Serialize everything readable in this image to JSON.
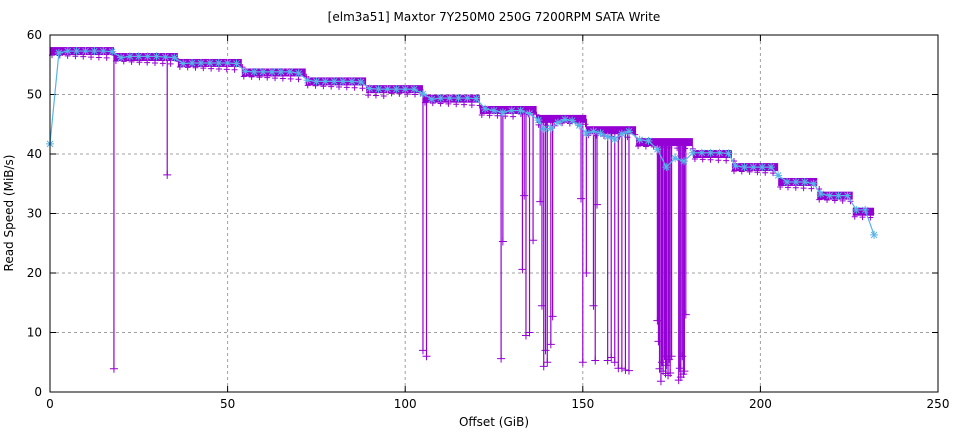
{
  "chart_data": {
    "type": "line",
    "title": "[elm3a51] Maxtor 7Y250M0 250G 7200RPM SATA Write",
    "xlabel": "Offset (GiB)",
    "ylabel": "Read Speed (MiB/s)",
    "xlim": [
      0,
      250
    ],
    "ylim": [
      0,
      60
    ],
    "xticks": [
      "0",
      "50",
      "100",
      "150",
      "200",
      "250"
    ],
    "yticks": [
      "0",
      "10",
      "20",
      "30",
      "40",
      "50",
      "60"
    ],
    "grid": true,
    "colors": {
      "samples": "#9400d3",
      "average": "#56b4e9"
    },
    "zones": [
      [
        0,
        18,
        57.3
      ],
      [
        18,
        36,
        56.3
      ],
      [
        36,
        54,
        55.3
      ],
      [
        54,
        72,
        53.7
      ],
      [
        72,
        89,
        52.2
      ],
      [
        89,
        105,
        50.9
      ],
      [
        105,
        121,
        49.3
      ],
      [
        121,
        137,
        47.4
      ],
      [
        137,
        151,
        45.9
      ],
      [
        151,
        165,
        44.0
      ],
      [
        165,
        181,
        42.0
      ],
      [
        181,
        192,
        40.0
      ],
      [
        192,
        205,
        37.8
      ],
      [
        205,
        216,
        35.3
      ],
      [
        216,
        226,
        33.0
      ],
      [
        226,
        232,
        30.3
      ]
    ],
    "dips": [
      [
        18,
        3.9
      ],
      [
        33,
        36.5
      ],
      [
        105,
        7.0
      ],
      [
        106,
        6.0
      ],
      [
        127,
        5.6
      ],
      [
        127.5,
        25.3
      ],
      [
        133,
        20.6
      ],
      [
        133.5,
        33
      ],
      [
        134,
        9.5
      ],
      [
        135,
        10
      ],
      [
        136,
        25.5
      ],
      [
        138,
        32
      ],
      [
        138.5,
        14.5
      ],
      [
        139,
        4.3
      ],
      [
        139.5,
        7
      ],
      [
        140,
        5
      ],
      [
        141,
        8
      ],
      [
        141.5,
        12.7
      ],
      [
        149.5,
        32.5
      ],
      [
        150,
        5
      ],
      [
        151,
        20
      ],
      [
        153,
        14.5
      ],
      [
        153.5,
        5.3
      ],
      [
        154,
        31.5
      ],
      [
        157,
        5.3
      ],
      [
        158,
        5.8
      ],
      [
        159,
        5
      ],
      [
        160,
        4
      ],
      [
        161,
        4
      ],
      [
        162,
        3.7
      ],
      [
        163,
        3.6
      ],
      [
        171,
        12
      ],
      [
        171.3,
        8.5
      ],
      [
        171.6,
        3.9
      ],
      [
        172,
        1.8
      ],
      [
        172.3,
        5
      ],
      [
        172.6,
        3.5
      ],
      [
        173,
        6
      ],
      [
        173.3,
        3.1
      ],
      [
        173.6,
        4.5
      ],
      [
        174,
        2.8
      ],
      [
        174.3,
        5.5
      ],
      [
        174.6,
        3.2
      ],
      [
        175,
        6
      ],
      [
        177,
        2
      ],
      [
        177.3,
        4
      ],
      [
        177.6,
        2.5
      ],
      [
        178,
        6
      ],
      [
        178.3,
        3
      ],
      [
        178.6,
        3.5
      ],
      [
        179,
        13
      ]
    ],
    "series": [
      {
        "x": [
          0,
          2.5,
          5,
          7.5,
          10,
          12.5,
          15,
          17.5,
          20,
          22.5,
          25,
          27.5,
          30,
          32.5,
          35,
          37.5,
          40,
          42.5,
          45,
          47.5,
          50,
          52.5,
          55,
          57.5,
          60,
          62.5,
          65,
          67.5,
          70,
          72.5,
          75,
          77.5,
          80,
          82.5,
          85,
          87.5,
          90,
          92.5,
          95,
          97.5,
          100,
          102.5,
          105,
          107.5,
          110,
          112.5,
          115,
          117.5,
          120,
          122.5,
          125,
          127.5,
          130,
          132.5,
          135,
          137.5,
          139,
          141,
          143,
          145,
          147,
          149,
          151,
          153,
          155,
          157,
          159,
          161,
          163,
          166,
          168.5,
          171,
          173.5,
          176,
          178.5,
          181,
          183.5,
          186,
          188.5,
          191,
          193,
          195.5,
          198,
          200.5,
          203,
          205,
          207.5,
          210,
          212.5,
          215,
          217,
          219.5,
          222,
          224.5,
          227,
          229.5,
          232
        ],
        "y": [
          41.7,
          57.0,
          57.3,
          57.3,
          57.3,
          57.3,
          57.3,
          57.2,
          56.2,
          56.4,
          56.4,
          56.4,
          56.4,
          56.3,
          56.2,
          55.2,
          55.3,
          55.3,
          55.3,
          55.3,
          55.3,
          55.2,
          53.9,
          53.8,
          53.8,
          53.8,
          53.8,
          53.8,
          53.6,
          52.4,
          52.2,
          52.2,
          52.2,
          52.2,
          52.2,
          52.1,
          51.0,
          50.9,
          50.9,
          50.9,
          50.9,
          50.9,
          50.1,
          49.2,
          49.4,
          49.4,
          49.4,
          49.4,
          49.3,
          47.6,
          47.3,
          47.0,
          47.3,
          47.3,
          46.8,
          45.7,
          44.2,
          44.3,
          45.3,
          45.8,
          45.6,
          44.8,
          43.5,
          43.8,
          43.5,
          42.9,
          42.5,
          43.4,
          43.8,
          42.4,
          42.2,
          40.8,
          37.8,
          39.3,
          38.8,
          40.2,
          40.2,
          40.2,
          40.2,
          40.1,
          38.0,
          37.8,
          37.8,
          37.8,
          37.8,
          36.4,
          35.3,
          35.3,
          35.3,
          35.0,
          33.3,
          33.0,
          33.0,
          33.0,
          30.6,
          30.6,
          26.4
        ]
      }
    ]
  }
}
